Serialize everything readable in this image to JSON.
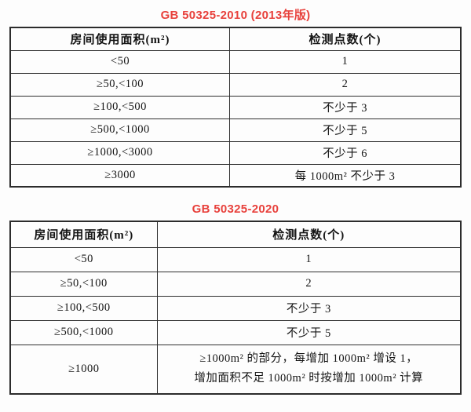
{
  "colors": {
    "title_red": "#e8413c",
    "border": "#2c2c2c",
    "text": "#141414",
    "background": "#fdfdfd"
  },
  "tables": [
    {
      "title": "GB 50325-2010 (2013年版)",
      "headers": [
        "房间使用面积(m²)",
        "检测点数(个)"
      ],
      "rows": [
        [
          "<50",
          "1"
        ],
        [
          "≥50,<100",
          "2"
        ],
        [
          "≥100,<500",
          "不少于 3"
        ],
        [
          "≥500,<1000",
          "不少于 5"
        ],
        [
          "≥1000,<3000",
          "不少于 6"
        ],
        [
          "≥3000",
          "每 1000m² 不少于 3"
        ]
      ]
    },
    {
      "title": "GB 50325-2020",
      "headers": [
        "房间使用面积(m²)",
        "检测点数(个)"
      ],
      "rows": [
        [
          "<50",
          "1"
        ],
        [
          "≥50,<100",
          "2"
        ],
        [
          "≥100,<500",
          "不少于 3"
        ],
        [
          "≥500,<1000",
          "不少于 5"
        ],
        [
          "≥1000",
          "≥1000m² 的部分，每增加 1000m² 增设 1，\n增加面积不足 1000m² 时按增加 1000m² 计算"
        ]
      ]
    }
  ]
}
